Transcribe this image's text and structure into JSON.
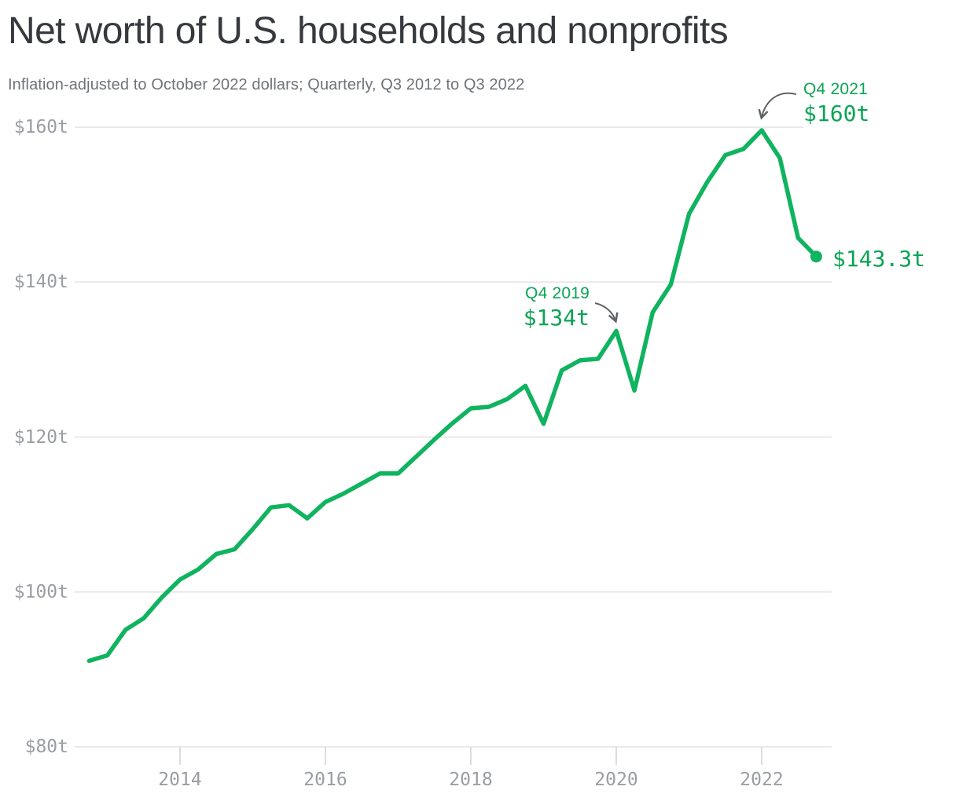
{
  "header": {
    "title": "Net worth of U.S. households and nonprofits",
    "subtitle": "Inflation-adjusted to October 2022 dollars; Quarterly, Q3 2012 to Q3 2022"
  },
  "chart_data": {
    "type": "line",
    "title": "Net worth of U.S. households and nonprofits",
    "subtitle": "Inflation-adjusted to October 2022 dollars; Quarterly, Q3 2012 to Q3 2022",
    "unit": "trillions of inflation-adjusted U.S. dollars",
    "frequency": "Quarterly",
    "range": "Q3 2012 to Q3 2022",
    "x": [
      "Q3 2012",
      "Q4 2012",
      "Q1 2013",
      "Q2 2013",
      "Q3 2013",
      "Q4 2013",
      "Q1 2014",
      "Q2 2014",
      "Q3 2014",
      "Q4 2014",
      "Q1 2015",
      "Q2 2015",
      "Q3 2015",
      "Q4 2015",
      "Q1 2016",
      "Q2 2016",
      "Q3 2016",
      "Q4 2016",
      "Q1 2017",
      "Q2 2017",
      "Q3 2017",
      "Q4 2017",
      "Q1 2018",
      "Q2 2018",
      "Q3 2018",
      "Q4 2018",
      "Q1 2019",
      "Q2 2019",
      "Q3 2019",
      "Q4 2019",
      "Q1 2020",
      "Q2 2020",
      "Q3 2020",
      "Q4 2020",
      "Q1 2021",
      "Q2 2021",
      "Q3 2021",
      "Q4 2021",
      "Q1 2022",
      "Q2 2022",
      "Q3 2022"
    ],
    "values": [
      91.1,
      91.8,
      95.1,
      96.6,
      99.3,
      101.6,
      102.9,
      104.9,
      105.5,
      108.1,
      110.9,
      111.2,
      109.5,
      111.6,
      112.7,
      114.0,
      115.3,
      115.3,
      117.5,
      119.7,
      121.8,
      123.7,
      123.9,
      124.9,
      126.6,
      121.7,
      128.6,
      129.9,
      130.1,
      133.7,
      126.0,
      136.1,
      139.7,
      148.8,
      152.9,
      156.4,
      157.2,
      159.6,
      156.0,
      145.7,
      143.3
    ],
    "ylim": [
      80,
      160
    ],
    "yticks": [
      {
        "value": 160,
        "label": "$160t"
      },
      {
        "value": 140,
        "label": "$140t"
      },
      {
        "value": 120,
        "label": "$120t"
      },
      {
        "value": 100,
        "label": "$100t"
      },
      {
        "value": 80,
        "label": "$80t"
      }
    ],
    "xticks": [
      {
        "year": 2014,
        "label": "2014"
      },
      {
        "year": 2016,
        "label": "2016"
      },
      {
        "year": 2018,
        "label": "2018"
      },
      {
        "year": 2020,
        "label": "2020"
      },
      {
        "year": 2022,
        "label": "2022"
      }
    ],
    "grid": "horizontal only",
    "legend": "none",
    "annotations": [
      {
        "id": "peak",
        "quarter": "Q4 2021",
        "label": "Q4 2021",
        "value_label": "$160t",
        "value": 159.6
      },
      {
        "id": "pre_covid_peak",
        "quarter": "Q4 2019",
        "label": "Q4 2019",
        "value_label": "$134t",
        "value": 133.7
      },
      {
        "id": "latest",
        "quarter": "Q3 2022",
        "value_label": "$143.3t",
        "value": 143.3
      }
    ],
    "colors": {
      "line": "#10b35f",
      "annotation_text": "#0aa455",
      "grid": "#e8e9ea",
      "tick": "#dcdde0",
      "axis_label": "#9a9da3",
      "arrow": "#5f6366",
      "title": "#36393d",
      "subtitle": "#6f7378"
    }
  }
}
